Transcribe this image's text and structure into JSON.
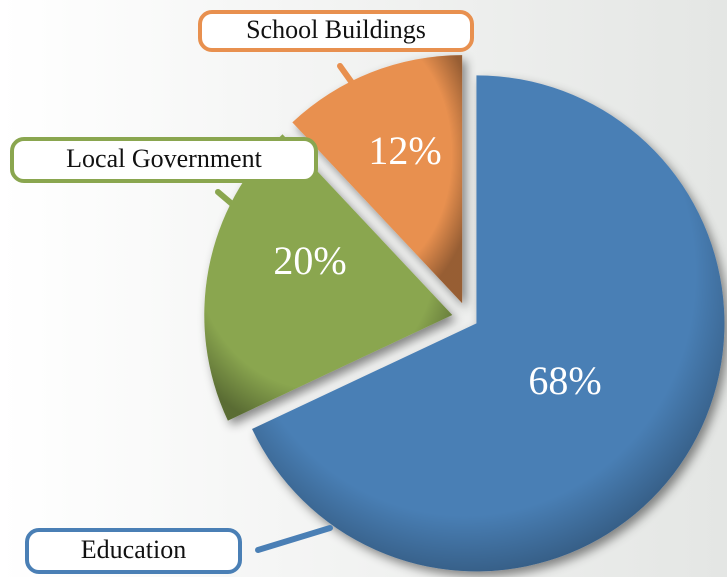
{
  "chart_data": {
    "type": "pie",
    "categories": [
      "Education",
      "Local Government",
      "School Buildings"
    ],
    "values": [
      68,
      20,
      12
    ],
    "value_labels": [
      "68%",
      "20%",
      "12%"
    ],
    "colors": [
      "#4a7fb5",
      "#8aa64f",
      "#e8904f"
    ]
  }
}
